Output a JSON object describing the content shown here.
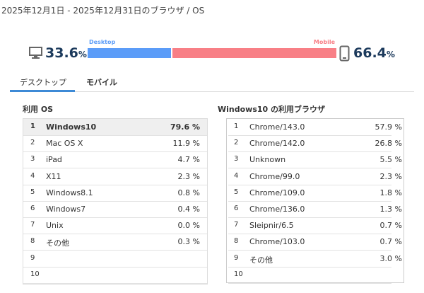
{
  "header": {
    "title": "2025年12月1日 - 2025年12月31日のブラウザ / OS"
  },
  "share": {
    "desktop": {
      "label": "Desktop",
      "value": 33.6,
      "unit": "%",
      "color": "#5b9cf8"
    },
    "mobile": {
      "label": "Mobile",
      "value": 66.4,
      "unit": "%",
      "color": "#f87f86"
    }
  },
  "tabs": [
    "デスクトップ",
    "モバイル"
  ],
  "os_table": {
    "title": "利用 OS",
    "rows": [
      [
        "1",
        "Windows10",
        "79.6 %"
      ],
      [
        "2",
        "Mac OS X",
        "11.9 %"
      ],
      [
        "3",
        "iPad",
        "4.7 %"
      ],
      [
        "4",
        "X11",
        "2.3 %"
      ],
      [
        "5",
        "Windows8.1",
        "0.8 %"
      ],
      [
        "6",
        "Windows7",
        "0.4 %"
      ],
      [
        "7",
        "Unix",
        "0.0 %"
      ],
      [
        "8",
        "その他",
        "0.3 %"
      ],
      [
        "9"
      ],
      [
        "10"
      ]
    ]
  },
  "browser_table": {
    "title": "Windows10 の利用ブラウザ",
    "rows": [
      [
        "1",
        "Chrome/143.0",
        "57.9 %"
      ],
      [
        "2",
        "Chrome/142.0",
        "26.8 %"
      ],
      [
        "3",
        "Unknown",
        "5.5 %"
      ],
      [
        "4",
        "Chrome/99.0",
        "2.3 %"
      ],
      [
        "5",
        "Chrome/109.0",
        "1.8 %"
      ],
      [
        "6",
        "Chrome/136.0",
        "1.3 %"
      ],
      [
        "7",
        "Sleipnir/6.5",
        "0.7 %"
      ],
      [
        "8",
        "Chrome/103.0",
        "0.7 %"
      ],
      [
        "9",
        "その他",
        "3.0 %"
      ],
      [
        "10"
      ]
    ]
  }
}
